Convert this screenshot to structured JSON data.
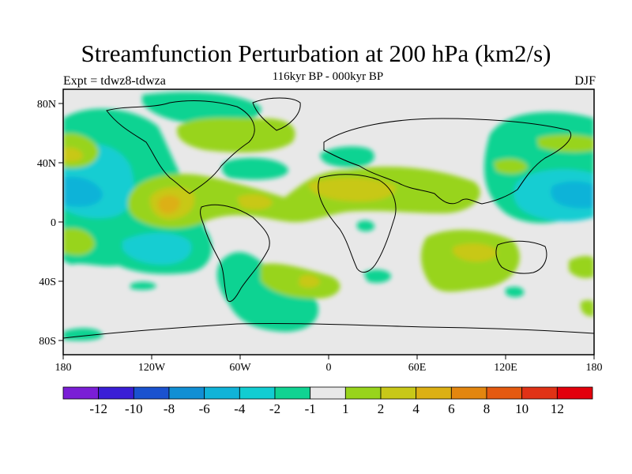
{
  "title": "Streamfunction Perturbation at 200 hPa (km2/s)",
  "subtitle": "116kyr BP - 000kyr BP",
  "left_label": "Expt = tdwz8-tdwza",
  "right_label": "DJF",
  "lat_ticks": [
    "80N",
    "40N",
    "0",
    "40S",
    "80S"
  ],
  "lon_ticks": [
    "180",
    "120W",
    "60W",
    "0",
    "60E",
    "120E",
    "180"
  ],
  "colorbar": {
    "colors": [
      "#7a1ed6",
      "#3a1ed6",
      "#1a52cf",
      "#118fd4",
      "#10b3d8",
      "#12cdd2",
      "#10d392",
      "#e8e8e8",
      "#98d41c",
      "#c8c818",
      "#dcb014",
      "#e3860f",
      "#e45a10",
      "#e03216",
      "#e3000c"
    ],
    "labels": [
      "-12",
      "-10",
      "-8",
      "-6",
      "-4",
      "-2",
      "-1",
      "1",
      "2",
      "4",
      "6",
      "8",
      "10",
      "12"
    ]
  }
}
